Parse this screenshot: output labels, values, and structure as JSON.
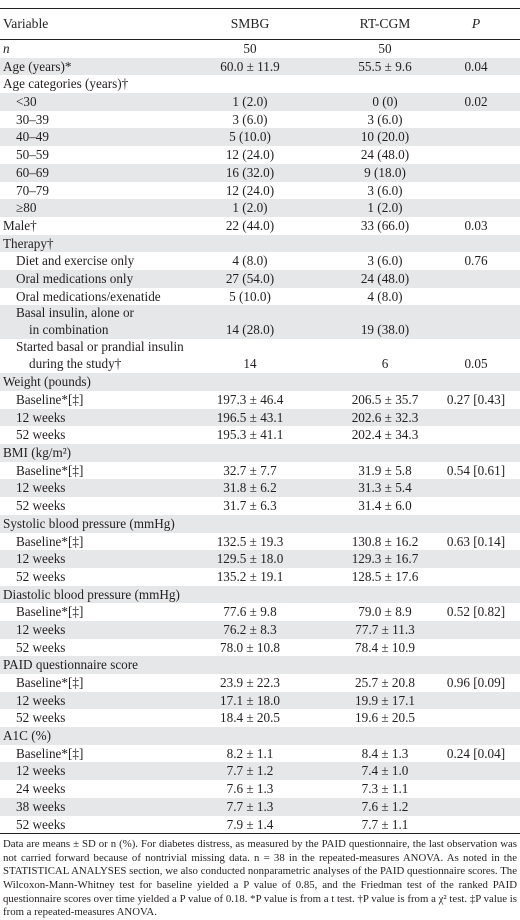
{
  "header": {
    "variable": "Variable",
    "smbg": "SMBG",
    "rtcgm": "RT-CGM",
    "p": "P"
  },
  "rows": [
    {
      "type": "row",
      "shade": false,
      "indent": false,
      "italic": true,
      "label": "n",
      "smbg": "50",
      "rtcgm": "50",
      "p": ""
    },
    {
      "type": "row",
      "shade": true,
      "indent": false,
      "label": "Age (years)*",
      "smbg": "60.0 ± 11.9",
      "rtcgm": "55.5 ± 9.6",
      "p": "0.04"
    },
    {
      "type": "row",
      "shade": false,
      "indent": false,
      "label": "Age categories (years)†",
      "smbg": "",
      "rtcgm": "",
      "p": ""
    },
    {
      "type": "row",
      "shade": true,
      "indent": true,
      "label": "<30",
      "smbg": "1 (2.0)",
      "rtcgm": "0 (0)",
      "p": "0.02"
    },
    {
      "type": "row",
      "shade": false,
      "indent": true,
      "label": "30–39",
      "smbg": "3 (6.0)",
      "rtcgm": "3 (6.0)",
      "p": ""
    },
    {
      "type": "row",
      "shade": true,
      "indent": true,
      "label": "40–49",
      "smbg": "5 (10.0)",
      "rtcgm": "10 (20.0)",
      "p": ""
    },
    {
      "type": "row",
      "shade": false,
      "indent": true,
      "label": "50–59",
      "smbg": "12 (24.0)",
      "rtcgm": "24 (48.0)",
      "p": ""
    },
    {
      "type": "row",
      "shade": true,
      "indent": true,
      "label": "60–69",
      "smbg": "16 (32.0)",
      "rtcgm": "9 (18.0)",
      "p": ""
    },
    {
      "type": "row",
      "shade": false,
      "indent": true,
      "label": "70–79",
      "smbg": "12 (24.0)",
      "rtcgm": "3 (6.0)",
      "p": ""
    },
    {
      "type": "row",
      "shade": true,
      "indent": true,
      "label": "≥80",
      "smbg": "1 (2.0)",
      "rtcgm": "1 (2.0)",
      "p": ""
    },
    {
      "type": "row",
      "shade": false,
      "indent": false,
      "label": "Male†",
      "smbg": "22 (44.0)",
      "rtcgm": "33 (66.0)",
      "p": "0.03"
    },
    {
      "type": "row",
      "shade": true,
      "indent": false,
      "label": "Therapy†",
      "smbg": "",
      "rtcgm": "",
      "p": ""
    },
    {
      "type": "row",
      "shade": false,
      "indent": true,
      "label": "Diet and exercise only",
      "smbg": "4 (8.0)",
      "rtcgm": "3 (6.0)",
      "p": "0.76"
    },
    {
      "type": "row",
      "shade": true,
      "indent": true,
      "label": "Oral medications only",
      "smbg": "27 (54.0)",
      "rtcgm": "24 (48.0)",
      "p": ""
    },
    {
      "type": "row",
      "shade": false,
      "indent": true,
      "label": "Oral medications/exenatide",
      "smbg": "5 (10.0)",
      "rtcgm": "4 (8.0)",
      "p": ""
    },
    {
      "type": "tall",
      "shade": true,
      "indent": true,
      "label": "Basal insulin, alone or",
      "label2": "in combination",
      "smbg": "14 (28.0)",
      "rtcgm": "19 (38.0)",
      "p": ""
    },
    {
      "type": "tall",
      "shade": false,
      "indent": true,
      "label": "Started basal or prandial insulin",
      "label2": "during the study†",
      "smbg": "14",
      "rtcgm": "6",
      "p": "0.05"
    },
    {
      "type": "row",
      "shade": true,
      "indent": false,
      "label": "Weight (pounds)",
      "smbg": "",
      "rtcgm": "",
      "p": ""
    },
    {
      "type": "row",
      "shade": false,
      "indent": true,
      "label": "Baseline*[‡]",
      "smbg": "197.3 ± 46.4",
      "rtcgm": "206.5 ± 35.7",
      "p": "0.27 [0.43]"
    },
    {
      "type": "row",
      "shade": true,
      "indent": true,
      "label": "12 weeks",
      "smbg": "196.5 ± 43.1",
      "rtcgm": "202.6 ± 32.3",
      "p": ""
    },
    {
      "type": "row",
      "shade": false,
      "indent": true,
      "label": "52 weeks",
      "smbg": "195.3 ± 41.1",
      "rtcgm": "202.4 ± 34.3",
      "p": ""
    },
    {
      "type": "row",
      "shade": true,
      "indent": false,
      "label": "BMI (kg/m²)",
      "smbg": "",
      "rtcgm": "",
      "p": ""
    },
    {
      "type": "row",
      "shade": false,
      "indent": true,
      "label": "Baseline*[‡]",
      "smbg": "32.7 ± 7.7",
      "rtcgm": "31.9 ± 5.8",
      "p": "0.54 [0.61]"
    },
    {
      "type": "row",
      "shade": true,
      "indent": true,
      "label": "12 weeks",
      "smbg": "31.8 ± 6.2",
      "rtcgm": "31.3 ± 5.4",
      "p": ""
    },
    {
      "type": "row",
      "shade": false,
      "indent": true,
      "label": "52 weeks",
      "smbg": "31.7 ± 6.3",
      "rtcgm": "31.4 ± 6.0",
      "p": ""
    },
    {
      "type": "row",
      "shade": true,
      "indent": false,
      "label": "Systolic blood pressure (mmHg)",
      "smbg": "",
      "rtcgm": "",
      "p": ""
    },
    {
      "type": "row",
      "shade": false,
      "indent": true,
      "label": "Baseline*[‡]",
      "smbg": "132.5 ± 19.3",
      "rtcgm": "130.8 ± 16.2",
      "p": "0.63 [0.14]"
    },
    {
      "type": "row",
      "shade": true,
      "indent": true,
      "label": "12 weeks",
      "smbg": "129.5 ± 18.0",
      "rtcgm": "129.3 ± 16.7",
      "p": ""
    },
    {
      "type": "row",
      "shade": false,
      "indent": true,
      "label": "52 weeks",
      "smbg": "135.2 ± 19.1",
      "rtcgm": "128.5 ± 17.6",
      "p": ""
    },
    {
      "type": "row",
      "shade": true,
      "indent": false,
      "label": "Diastolic blood pressure (mmHg)",
      "smbg": "",
      "rtcgm": "",
      "p": ""
    },
    {
      "type": "row",
      "shade": false,
      "indent": true,
      "label": "Baseline*[‡]",
      "smbg": "77.6 ± 9.8",
      "rtcgm": "79.0 ± 8.9",
      "p": "0.52 [0.82]"
    },
    {
      "type": "row",
      "shade": true,
      "indent": true,
      "label": "12 weeks",
      "smbg": "76.2 ± 8.3",
      "rtcgm": "77.7 ± 11.3",
      "p": ""
    },
    {
      "type": "row",
      "shade": false,
      "indent": true,
      "label": "52 weeks",
      "smbg": "78.0 ± 10.8",
      "rtcgm": "78.4 ± 10.9",
      "p": ""
    },
    {
      "type": "row",
      "shade": true,
      "indent": false,
      "label": "PAID questionnaire score",
      "smbg": "",
      "rtcgm": "",
      "p": ""
    },
    {
      "type": "row",
      "shade": false,
      "indent": true,
      "label": "Baseline*[‡]",
      "smbg": "23.9 ± 22.3",
      "rtcgm": "25.7 ± 20.8",
      "p": "0.96 [0.09]"
    },
    {
      "type": "row",
      "shade": true,
      "indent": true,
      "label": "12 weeks",
      "smbg": "17.1 ± 18.0",
      "rtcgm": "19.9 ± 17.1",
      "p": ""
    },
    {
      "type": "row",
      "shade": false,
      "indent": true,
      "label": "52 weeks",
      "smbg": "18.4 ± 20.5",
      "rtcgm": "19.6 ± 20.5",
      "p": ""
    },
    {
      "type": "row",
      "shade": true,
      "indent": false,
      "label": "A1C (%)",
      "smbg": "",
      "rtcgm": "",
      "p": ""
    },
    {
      "type": "row",
      "shade": false,
      "indent": true,
      "label": "Baseline*[‡]",
      "smbg": "8.2 ± 1.1",
      "rtcgm": "8.4 ± 1.3",
      "p": "0.24 [0.04]"
    },
    {
      "type": "row",
      "shade": true,
      "indent": true,
      "label": "12 weeks",
      "smbg": "7.7 ± 1.2",
      "rtcgm": "7.4 ± 1.0",
      "p": ""
    },
    {
      "type": "row",
      "shade": false,
      "indent": true,
      "label": "24 weeks",
      "smbg": "7.6 ± 1.3",
      "rtcgm": "7.3 ± 1.1",
      "p": ""
    },
    {
      "type": "row",
      "shade": true,
      "indent": true,
      "label": "38 weeks",
      "smbg": "7.7 ± 1.3",
      "rtcgm": "7.6 ± 1.2",
      "p": ""
    },
    {
      "type": "row",
      "shade": false,
      "indent": true,
      "label": "52 weeks",
      "smbg": "7.9 ± 1.4",
      "rtcgm": "7.7 ± 1.1",
      "p": ""
    }
  ],
  "footnote": "Data are means ± SD or n (%). For diabetes distress, as measured by the PAID questionnaire, the last observation was not carried forward because of nontrivial missing data. n = 38 in the repeated-measures ANOVA. As noted in the STATISTICAL ANALYSES section, we also conducted nonparametric analyses of the PAID questionnaire scores. The Wilcoxon-Mann-Whitney test for baseline yielded a P value of 0.85, and the Friedman test of the ranked PAID questionnaire scores over time yielded a P value of 0.18. *P value is from a t test. †P value is from a χ² test. ‡P value is from a repeated-measures ANOVA."
}
